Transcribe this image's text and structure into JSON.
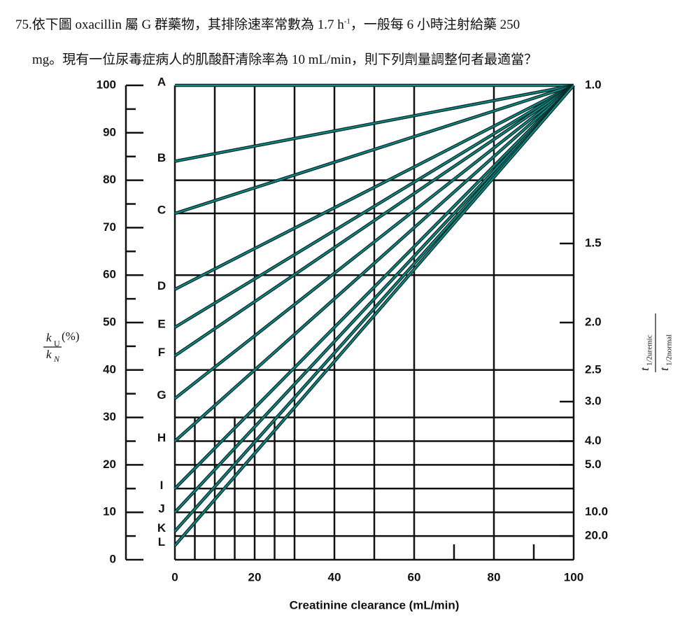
{
  "question": {
    "line1a": "75.依下圖 oxacillin 屬 G 群藥物，其排除速率常數為 1.7 h",
    "line1sup": "-1",
    "line1b": "，一般每 6 小時注射給藥 250",
    "line2": "mg。現有一位尿毒症病人的肌酸酐清除率為 10 mL/min，則下列劑量調整何者最適當？"
  },
  "chart_data": {
    "type": "line",
    "xlabel": "Creatinine clearance (mL/min)",
    "ylabel": {
      "num": "k",
      "num_sub": "U",
      "unit": "(%)",
      "den": "k",
      "den_sub": "N"
    },
    "y2label": {
      "num": "t",
      "num_sub": "1/2uremic",
      "den": "t",
      "den_sub": "1/2normal"
    },
    "x": [
      0,
      100
    ],
    "series": [
      {
        "name": "A",
        "color": "#0e8a84",
        "values": [
          100,
          100
        ]
      },
      {
        "name": "B",
        "color": "#0e8a84",
        "values": [
          84,
          100
        ]
      },
      {
        "name": "C",
        "color": "#0e8a84",
        "values": [
          73,
          100
        ]
      },
      {
        "name": "D",
        "color": "#0e8a84",
        "values": [
          57,
          100
        ]
      },
      {
        "name": "E",
        "color": "#0e8a84",
        "values": [
          49,
          100
        ]
      },
      {
        "name": "F",
        "color": "#0e8a84",
        "values": [
          43,
          100
        ]
      },
      {
        "name": "G",
        "color": "#0e8a84",
        "values": [
          34,
          100
        ]
      },
      {
        "name": "H",
        "color": "#0e8a84",
        "values": [
          25,
          100
        ]
      },
      {
        "name": "I",
        "color": "#0e8a84",
        "values": [
          15,
          100
        ]
      },
      {
        "name": "J",
        "color": "#0e8a84",
        "values": [
          10,
          100
        ]
      },
      {
        "name": "K",
        "color": "#0e8a84",
        "values": [
          6,
          100
        ]
      },
      {
        "name": "L",
        "color": "#0e8a84",
        "values": [
          3,
          100
        ]
      }
    ],
    "xlim": [
      0,
      100
    ],
    "xticks": [
      0,
      20,
      40,
      60,
      80,
      100
    ],
    "xminorticks": [
      70,
      90
    ],
    "ylim": [
      0,
      100
    ],
    "yticks": [
      0,
      10,
      20,
      30,
      40,
      50,
      60,
      70,
      80,
      90,
      100
    ],
    "yminorticks": [
      5,
      15,
      25,
      35,
      45,
      55,
      65,
      75,
      85,
      95
    ],
    "y2scale": "reciprocal",
    "y2ticks": [
      {
        "value": 1,
        "label": "1.0"
      },
      {
        "value": 1.5,
        "label": "1.5"
      },
      {
        "value": 2,
        "label": "2.0"
      },
      {
        "value": 2.5,
        "label": "2.5"
      },
      {
        "value": 3,
        "label": "3.0"
      },
      {
        "value": 4,
        "label": "4.0"
      },
      {
        "value": 5,
        "label": "5.0"
      },
      {
        "value": 10,
        "label": "10.0"
      },
      {
        "value": 20,
        "label": "20.0"
      }
    ],
    "grid": true,
    "xgrid": [
      0,
      10,
      20,
      30,
      40,
      50,
      60,
      80,
      100
    ],
    "xgrid_partial": [
      5,
      15,
      25
    ],
    "ygrid": [
      5,
      10,
      15,
      20,
      25,
      30,
      40,
      60,
      73,
      80
    ]
  }
}
